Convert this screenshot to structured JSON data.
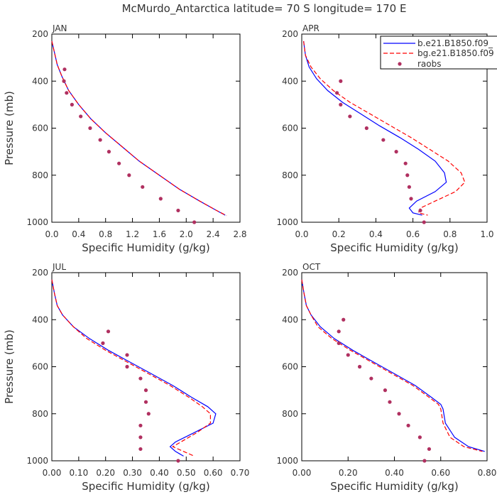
{
  "title": "McMurdo_Antarctica  latitude= 70 S longitude= 170 E",
  "legend": {
    "entries": [
      {
        "label": "b.e21.B1850.f09_",
        "color": "#0000ff",
        "style": "solid"
      },
      {
        "label": "bg.e21.B1850.f09",
        "color": "#ff0000",
        "style": "dashed"
      },
      {
        "label": "raobs",
        "color": "#b03060",
        "style": "dots"
      }
    ]
  },
  "colors": {
    "model1": "#0000ff",
    "model2": "#ff0000",
    "obs": "#b03060"
  },
  "chart_data": [
    {
      "type": "line",
      "panel": "JAN",
      "xlabel": "Specific Humidity (g/kg)",
      "ylabel": "Pressure (mb)",
      "xlim": [
        0,
        2.8
      ],
      "ylim": [
        1000,
        200
      ],
      "xticks": [
        "0.0",
        "0.4",
        "0.8",
        "1.2",
        "1.6",
        "2.0",
        "2.4",
        "2.8"
      ],
      "yticks": [
        "200",
        "400",
        "600",
        "800",
        "1000"
      ],
      "series": [
        {
          "name": "b.e21.B1850.f09_",
          "x": [
            0.0,
            0.04,
            0.08,
            0.15,
            0.25,
            0.4,
            0.58,
            0.8,
            1.05,
            1.3,
            1.6,
            1.9,
            2.2,
            2.45,
            2.58
          ],
          "y": [
            230,
            280,
            330,
            380,
            440,
            500,
            560,
            620,
            680,
            740,
            800,
            860,
            910,
            950,
            970
          ]
        },
        {
          "name": "bg.e21.B1850.f09",
          "x": [
            0.0,
            0.04,
            0.08,
            0.15,
            0.25,
            0.4,
            0.58,
            0.8,
            1.05,
            1.3,
            1.6,
            1.9,
            2.2,
            2.45,
            2.6
          ],
          "y": [
            230,
            280,
            330,
            380,
            440,
            500,
            560,
            620,
            680,
            740,
            800,
            860,
            910,
            950,
            972
          ]
        },
        {
          "name": "raobs",
          "x": [
            0.19,
            0.18,
            0.22,
            0.3,
            0.43,
            0.57,
            0.72,
            0.85,
            1.0,
            1.15,
            1.35,
            1.62,
            1.88,
            2.12
          ],
          "y": [
            350,
            400,
            450,
            500,
            550,
            600,
            650,
            700,
            750,
            800,
            850,
            900,
            950,
            1000
          ]
        }
      ]
    },
    {
      "type": "line",
      "panel": "APR",
      "xlabel": "Specific Humidity (g/kg)",
      "ylabel": "Pressure (mb)",
      "xlim": [
        0,
        1.0
      ],
      "ylim": [
        1000,
        200
      ],
      "xticks": [
        "0.0",
        "0.2",
        "0.4",
        "0.6",
        "0.8",
        "1.0"
      ],
      "yticks": [
        "200",
        "400",
        "600",
        "800",
        "1000"
      ],
      "series": [
        {
          "name": "b.e21.B1850.f09_",
          "x": [
            0.01,
            0.02,
            0.04,
            0.08,
            0.14,
            0.22,
            0.32,
            0.42,
            0.53,
            0.63,
            0.72,
            0.77,
            0.78,
            0.72,
            0.62,
            0.58,
            0.6,
            0.65
          ],
          "y": [
            230,
            290,
            340,
            390,
            440,
            490,
            540,
            590,
            640,
            690,
            740,
            790,
            830,
            870,
            910,
            940,
            960,
            970
          ]
        },
        {
          "name": "bg.e21.B1850.f09",
          "x": [
            0.01,
            0.02,
            0.05,
            0.1,
            0.17,
            0.26,
            0.37,
            0.48,
            0.59,
            0.69,
            0.79,
            0.86,
            0.88,
            0.83,
            0.72,
            0.64,
            0.63,
            0.68
          ],
          "y": [
            230,
            290,
            340,
            390,
            440,
            490,
            540,
            590,
            640,
            690,
            740,
            790,
            830,
            870,
            910,
            940,
            960,
            970
          ]
        },
        {
          "name": "raobs",
          "x": [
            0.21,
            0.19,
            0.21,
            0.26,
            0.35,
            0.44,
            0.51,
            0.56,
            0.57,
            0.58,
            0.59,
            0.64,
            0.66
          ],
          "y": [
            400,
            450,
            500,
            550,
            600,
            650,
            700,
            750,
            800,
            850,
            900,
            950,
            1000
          ]
        }
      ]
    },
    {
      "type": "line",
      "panel": "JUL",
      "xlabel": "Specific Humidity (g/kg)",
      "ylabel": "Pressure (mb)",
      "xlim": [
        0,
        0.7
      ],
      "ylim": [
        1000,
        200
      ],
      "xticks": [
        "0.00",
        "0.10",
        "0.20",
        "0.30",
        "0.40",
        "0.50",
        "0.60",
        "0.70"
      ],
      "yticks": [
        "200",
        "400",
        "600",
        "800",
        "1000"
      ],
      "series": [
        {
          "name": "b.e21.B1850.f09_",
          "x": [
            0.0,
            0.01,
            0.02,
            0.04,
            0.08,
            0.14,
            0.21,
            0.29,
            0.37,
            0.45,
            0.52,
            0.58,
            0.61,
            0.6,
            0.53,
            0.46,
            0.44,
            0.46,
            0.49
          ],
          "y": [
            230,
            290,
            340,
            380,
            430,
            480,
            530,
            580,
            630,
            680,
            730,
            770,
            800,
            840,
            880,
            920,
            940,
            960,
            980
          ]
        },
        {
          "name": "bg.e21.B1850.f09",
          "x": [
            0.0,
            0.01,
            0.02,
            0.04,
            0.08,
            0.13,
            0.2,
            0.28,
            0.36,
            0.44,
            0.51,
            0.56,
            0.59,
            0.59,
            0.54,
            0.48,
            0.45,
            0.49,
            0.53
          ],
          "y": [
            230,
            290,
            340,
            380,
            430,
            480,
            530,
            580,
            630,
            680,
            730,
            770,
            800,
            840,
            880,
            920,
            940,
            960,
            980
          ]
        },
        {
          "name": "raobs",
          "x": [
            0.21,
            0.19,
            0.28,
            0.28,
            0.33,
            0.35,
            0.35,
            0.36,
            0.33,
            0.33,
            0.33,
            0.47
          ],
          "y": [
            450,
            500,
            550,
            600,
            650,
            700,
            750,
            800,
            850,
            900,
            950,
            1000
          ]
        }
      ]
    },
    {
      "type": "line",
      "panel": "OCT",
      "xlabel": "Specific Humidity (g/kg)",
      "ylabel": "Pressure (mb)",
      "xlim": [
        0,
        0.8
      ],
      "ylim": [
        1000,
        200
      ],
      "xticks": [
        "0.00",
        "0.20",
        "0.40",
        "0.60",
        "0.80"
      ],
      "yticks": [
        "200",
        "400",
        "600",
        "800",
        "1000"
      ],
      "series": [
        {
          "name": "b.e21.B1850.f09_",
          "x": [
            0.0,
            0.01,
            0.02,
            0.04,
            0.08,
            0.14,
            0.22,
            0.31,
            0.4,
            0.49,
            0.56,
            0.6,
            0.61,
            0.62,
            0.66,
            0.72,
            0.79
          ],
          "y": [
            230,
            290,
            340,
            380,
            430,
            480,
            530,
            580,
            630,
            680,
            730,
            760,
            780,
            840,
            900,
            940,
            960
          ]
        },
        {
          "name": "bg.e21.B1850.f09",
          "x": [
            0.0,
            0.01,
            0.02,
            0.04,
            0.07,
            0.13,
            0.21,
            0.3,
            0.39,
            0.48,
            0.55,
            0.59,
            0.6,
            0.61,
            0.64,
            0.7,
            0.78
          ],
          "y": [
            230,
            290,
            340,
            380,
            430,
            480,
            530,
            580,
            630,
            680,
            730,
            760,
            780,
            840,
            900,
            940,
            960
          ]
        },
        {
          "name": "raobs",
          "x": [
            0.18,
            0.16,
            0.16,
            0.2,
            0.25,
            0.3,
            0.36,
            0.38,
            0.42,
            0.46,
            0.51,
            0.55,
            0.53
          ],
          "y": [
            400,
            450,
            500,
            550,
            600,
            650,
            700,
            750,
            800,
            850,
            900,
            950,
            1000
          ]
        }
      ]
    }
  ]
}
